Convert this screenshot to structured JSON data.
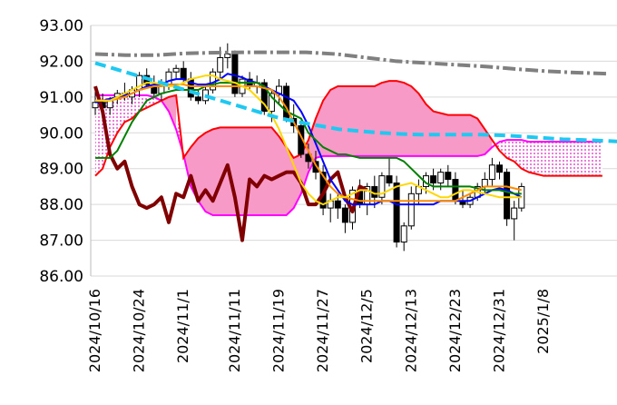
{
  "chart_data": {
    "type": "candlestick",
    "title": "",
    "xlabel": "",
    "ylabel": "",
    "ylim": [
      86.0,
      93.0
    ],
    "y_ticks": [
      "86.00",
      "87.00",
      "88.00",
      "89.00",
      "90.00",
      "91.00",
      "92.00",
      "93.00"
    ],
    "x_ticks": [
      "2024/10/16",
      "2024/10/24",
      "2024/11/1",
      "2024/11/11",
      "2024/11/19",
      "2024/11/27",
      "2024/12/5",
      "2024/12/13",
      "2024/12/23",
      "2024/12/31",
      "2025/1/8"
    ],
    "x_tick_index": [
      0,
      6,
      12,
      19,
      25,
      31,
      37,
      43,
      49,
      55,
      61
    ],
    "candles": [
      {
        "o": 90.7,
        "h": 91.2,
        "l": 90.5,
        "c": 90.85
      },
      {
        "o": 90.85,
        "h": 91.1,
        "l": 90.6,
        "c": 90.7
      },
      {
        "o": 90.7,
        "h": 91.0,
        "l": 90.5,
        "c": 90.95
      },
      {
        "o": 90.95,
        "h": 91.2,
        "l": 90.8,
        "c": 91.1
      },
      {
        "o": 91.1,
        "h": 91.4,
        "l": 90.9,
        "c": 91.0
      },
      {
        "o": 91.0,
        "h": 91.3,
        "l": 90.8,
        "c": 91.2
      },
      {
        "o": 91.2,
        "h": 91.7,
        "l": 91.0,
        "c": 91.6
      },
      {
        "o": 91.6,
        "h": 91.8,
        "l": 91.3,
        "c": 91.35
      },
      {
        "o": 91.3,
        "h": 91.6,
        "l": 91.0,
        "c": 91.1
      },
      {
        "o": 91.1,
        "h": 91.5,
        "l": 90.9,
        "c": 91.3
      },
      {
        "o": 91.3,
        "h": 91.8,
        "l": 91.2,
        "c": 91.7
      },
      {
        "o": 91.7,
        "h": 91.9,
        "l": 91.5,
        "c": 91.8
      },
      {
        "o": 91.8,
        "h": 92.0,
        "l": 91.4,
        "c": 91.5
      },
      {
        "o": 91.5,
        "h": 91.7,
        "l": 90.9,
        "c": 91.0
      },
      {
        "o": 91.0,
        "h": 91.2,
        "l": 90.8,
        "c": 90.9
      },
      {
        "o": 90.9,
        "h": 91.3,
        "l": 90.8,
        "c": 91.2
      },
      {
        "o": 91.2,
        "h": 91.8,
        "l": 91.1,
        "c": 91.7
      },
      {
        "o": 91.7,
        "h": 92.4,
        "l": 91.5,
        "c": 92.1
      },
      {
        "o": 92.1,
        "h": 92.5,
        "l": 91.8,
        "c": 92.2
      },
      {
        "o": 92.2,
        "h": 92.3,
        "l": 91.0,
        "c": 91.1
      },
      {
        "o": 91.1,
        "h": 91.6,
        "l": 91.0,
        "c": 91.5
      },
      {
        "o": 91.5,
        "h": 91.7,
        "l": 91.2,
        "c": 91.3
      },
      {
        "o": 91.3,
        "h": 91.6,
        "l": 91.1,
        "c": 91.4
      },
      {
        "o": 91.4,
        "h": 91.5,
        "l": 90.5,
        "c": 90.6
      },
      {
        "o": 90.6,
        "h": 91.2,
        "l": 90.3,
        "c": 91.1
      },
      {
        "o": 91.1,
        "h": 91.5,
        "l": 90.8,
        "c": 91.3
      },
      {
        "o": 91.3,
        "h": 91.4,
        "l": 90.3,
        "c": 90.4
      },
      {
        "o": 90.4,
        "h": 90.8,
        "l": 90.0,
        "c": 90.2
      },
      {
        "o": 90.2,
        "h": 90.3,
        "l": 89.3,
        "c": 89.4
      },
      {
        "o": 89.4,
        "h": 89.7,
        "l": 89.0,
        "c": 89.2
      },
      {
        "o": 89.2,
        "h": 89.5,
        "l": 88.7,
        "c": 88.9
      },
      {
        "o": 88.9,
        "h": 89.1,
        "l": 87.7,
        "c": 87.9
      },
      {
        "o": 87.9,
        "h": 88.3,
        "l": 87.5,
        "c": 88.1
      },
      {
        "o": 88.1,
        "h": 88.3,
        "l": 87.6,
        "c": 87.9
      },
      {
        "o": 87.9,
        "h": 88.0,
        "l": 87.2,
        "c": 87.5
      },
      {
        "o": 87.5,
        "h": 88.5,
        "l": 87.3,
        "c": 88.4
      },
      {
        "o": 88.4,
        "h": 88.7,
        "l": 87.9,
        "c": 88.0
      },
      {
        "o": 88.0,
        "h": 88.6,
        "l": 87.7,
        "c": 88.5
      },
      {
        "o": 88.5,
        "h": 88.8,
        "l": 87.9,
        "c": 88.2
      },
      {
        "o": 88.2,
        "h": 88.9,
        "l": 88.0,
        "c": 88.8
      },
      {
        "o": 88.8,
        "h": 89.3,
        "l": 88.5,
        "c": 88.6
      },
      {
        "o": 88.6,
        "h": 88.8,
        "l": 86.8,
        "c": 86.95
      },
      {
        "o": 86.95,
        "h": 87.5,
        "l": 86.7,
        "c": 87.4
      },
      {
        "o": 87.4,
        "h": 88.5,
        "l": 87.3,
        "c": 88.3
      },
      {
        "o": 88.3,
        "h": 88.7,
        "l": 88.0,
        "c": 88.5
      },
      {
        "o": 88.5,
        "h": 88.9,
        "l": 88.3,
        "c": 88.8
      },
      {
        "o": 88.8,
        "h": 89.0,
        "l": 88.4,
        "c": 88.6
      },
      {
        "o": 88.6,
        "h": 89.0,
        "l": 88.4,
        "c": 88.9
      },
      {
        "o": 88.9,
        "h": 89.1,
        "l": 88.5,
        "c": 88.7
      },
      {
        "o": 88.7,
        "h": 88.9,
        "l": 88.0,
        "c": 88.1
      },
      {
        "o": 88.1,
        "h": 88.4,
        "l": 87.9,
        "c": 88.0
      },
      {
        "o": 88.0,
        "h": 88.3,
        "l": 87.9,
        "c": 88.2
      },
      {
        "o": 88.2,
        "h": 88.6,
        "l": 88.1,
        "c": 88.5
      },
      {
        "o": 88.5,
        "h": 88.9,
        "l": 88.3,
        "c": 88.7
      },
      {
        "o": 88.7,
        "h": 89.3,
        "l": 88.5,
        "c": 89.1
      },
      {
        "o": 89.1,
        "h": 89.2,
        "l": 88.7,
        "c": 88.9
      },
      {
        "o": 88.9,
        "h": 89.0,
        "l": 87.4,
        "c": 87.6
      },
      {
        "o": 87.6,
        "h": 88.1,
        "l": 87.0,
        "c": 87.9
      },
      {
        "o": 87.9,
        "h": 88.6,
        "l": 87.8,
        "c": 88.5
      }
    ],
    "cloud": {
      "start": 0,
      "span_a": [
        91.05,
        91.05,
        91.05,
        91.05,
        91.05,
        91.05,
        91.05,
        91.05,
        91.0,
        90.9,
        90.6,
        90.1,
        89.4,
        88.5,
        88.1,
        87.8,
        87.7,
        87.7,
        87.7,
        87.7,
        87.7,
        87.7,
        87.7,
        87.7,
        87.7,
        87.7,
        87.7,
        87.9,
        88.3,
        88.9,
        89.3,
        89.35,
        89.35,
        89.35,
        89.35,
        89.35,
        89.35,
        89.35,
        89.35,
        89.35,
        89.35,
        89.35,
        89.35,
        89.35,
        89.35,
        89.35,
        89.35,
        89.35,
        89.35,
        89.35,
        89.35,
        89.35,
        89.35,
        89.4,
        89.6,
        89.75,
        89.8,
        89.8,
        89.8,
        89.75,
        89.75,
        89.75,
        89.75,
        89.75,
        89.75,
        89.75,
        89.75,
        89.75,
        89.75,
        89.75
      ],
      "span_b": [
        88.8,
        89.0,
        89.6,
        90.0,
        90.3,
        90.4,
        90.6,
        90.7,
        90.8,
        90.9,
        91.0,
        91.05,
        89.3,
        89.6,
        89.85,
        90.0,
        90.1,
        90.15,
        90.15,
        90.15,
        90.15,
        90.15,
        90.15,
        90.15,
        90.15,
        89.9,
        89.6,
        89.3,
        89.4,
        89.8,
        90.4,
        90.9,
        91.2,
        91.3,
        91.3,
        91.3,
        91.3,
        91.3,
        91.3,
        91.4,
        91.45,
        91.45,
        91.4,
        91.3,
        91.1,
        90.8,
        90.6,
        90.55,
        90.5,
        90.5,
        90.5,
        90.5,
        90.4,
        90.1,
        89.8,
        89.5,
        89.3,
        89.2,
        89.0,
        88.9,
        88.85,
        88.8,
        88.8,
        88.8,
        88.8,
        88.8,
        88.8,
        88.8,
        88.8,
        88.8
      ]
    },
    "series": [
      {
        "id": "chikou",
        "color": "#800000",
        "values": [
          91.3,
          90.6,
          89.4,
          89.0,
          89.2,
          88.5,
          88.0,
          87.9,
          88.0,
          88.2,
          87.5,
          88.3,
          88.2,
          88.8,
          88.1,
          88.4,
          88.1,
          88.6,
          89.1,
          88.2,
          87.0,
          88.7,
          88.5,
          88.8,
          88.7,
          88.8,
          88.9,
          88.9,
          88.6,
          88.0,
          88.0,
          88.3,
          88.7,
          88.9,
          88.2,
          87.8,
          88.5,
          88.4
        ]
      },
      {
        "id": "tenkan",
        "color": "#0000ff",
        "values": [
          90.85,
          90.9,
          90.95,
          91.0,
          91.05,
          91.1,
          91.2,
          91.3,
          91.35,
          91.35,
          91.45,
          91.5,
          91.5,
          91.4,
          91.35,
          91.35,
          91.4,
          91.5,
          91.65,
          91.6,
          91.55,
          91.45,
          91.4,
          91.3,
          91.2,
          91.1,
          91.0,
          90.9,
          90.6,
          90.2,
          89.7,
          89.2,
          88.7,
          88.4,
          88.1,
          88.0,
          88.0,
          88.0,
          88.0,
          88.1,
          88.1,
          88.0,
          88.0,
          88.0,
          88.0,
          88.0,
          88.0,
          88.1,
          88.1,
          88.1,
          88.1,
          88.1,
          88.2,
          88.3,
          88.4,
          88.45,
          88.4,
          88.3,
          88.2
        ]
      },
      {
        "id": "kijun",
        "color": "#008000",
        "values": [
          89.3,
          89.3,
          89.3,
          89.5,
          89.9,
          90.3,
          90.6,
          90.9,
          91.0,
          91.1,
          91.15,
          91.2,
          91.2,
          91.2,
          91.2,
          91.3,
          91.35,
          91.4,
          91.4,
          91.4,
          91.4,
          91.4,
          91.4,
          91.3,
          91.0,
          90.8,
          90.6,
          90.5,
          90.4,
          90.0,
          89.8,
          89.6,
          89.5,
          89.4,
          89.4,
          89.35,
          89.3,
          89.3,
          89.3,
          89.3,
          89.3,
          89.3,
          89.2,
          89.0,
          88.8,
          88.6,
          88.5,
          88.5,
          88.5,
          88.5,
          88.5,
          88.5,
          88.45,
          88.4,
          88.4,
          88.4,
          88.35,
          88.3,
          88.3
        ]
      },
      {
        "id": "ma_orange",
        "color": "#ff8c00",
        "values": [
          90.9,
          90.9,
          90.9,
          90.95,
          91.0,
          91.1,
          91.2,
          91.25,
          91.3,
          91.3,
          91.35,
          91.35,
          91.35,
          91.3,
          91.3,
          91.3,
          91.3,
          91.3,
          91.3,
          91.3,
          91.3,
          91.3,
          91.3,
          91.25,
          91.2,
          91.0,
          90.7,
          90.3,
          89.9,
          89.5,
          89.1,
          88.8,
          88.5,
          88.3,
          88.2,
          88.15,
          88.1,
          88.1,
          88.1,
          88.1,
          88.1,
          88.1,
          88.1,
          88.1,
          88.1,
          88.1,
          88.1,
          88.1,
          88.1,
          88.1,
          88.2,
          88.3,
          88.4,
          88.5,
          88.5,
          88.5,
          88.5,
          88.45,
          88.4
        ]
      },
      {
        "id": "ma_yellow",
        "color": "#ffd700",
        "values": [
          90.9,
          90.9,
          90.9,
          91.0,
          91.1,
          91.2,
          91.3,
          91.4,
          91.4,
          91.35,
          91.3,
          91.3,
          91.4,
          91.5,
          91.55,
          91.6,
          91.6,
          91.5,
          91.45,
          91.4,
          91.3,
          91.2,
          91.0,
          90.8,
          90.5,
          90.1,
          89.6,
          89.1,
          88.6,
          88.3,
          88.1,
          88.0,
          88.1,
          88.2,
          88.2,
          88.3,
          88.4,
          88.4,
          88.3,
          88.3,
          88.4,
          88.5,
          88.55,
          88.6,
          88.5,
          88.4,
          88.3,
          88.2,
          88.2,
          88.3,
          88.4,
          88.4,
          88.35,
          88.3,
          88.25,
          88.2,
          88.2,
          88.2,
          88.2
        ]
      },
      {
        "id": "trend_cyan",
        "color": "#1ec8f0",
        "dash": "12 6",
        "values": [
          91.95,
          91.78,
          91.61,
          91.44,
          91.27,
          91.1,
          90.93,
          90.76,
          90.59,
          90.42,
          90.3,
          90.2,
          90.1,
          90.05,
          90.0,
          89.97,
          89.95,
          89.95,
          89.95,
          89.95,
          89.93,
          89.9,
          89.86,
          89.82,
          89.8,
          89.78,
          89.75
        ]
      },
      {
        "id": "trend_gray",
        "color": "#808080",
        "dash": "14 4 3 4",
        "values": [
          92.2,
          92.17,
          92.17,
          92.22,
          92.24,
          92.25,
          92.25,
          92.25,
          92.2,
          92.1,
          92.0,
          91.95,
          91.9,
          91.85,
          91.78,
          91.72,
          91.68,
          91.65
        ]
      }
    ]
  }
}
